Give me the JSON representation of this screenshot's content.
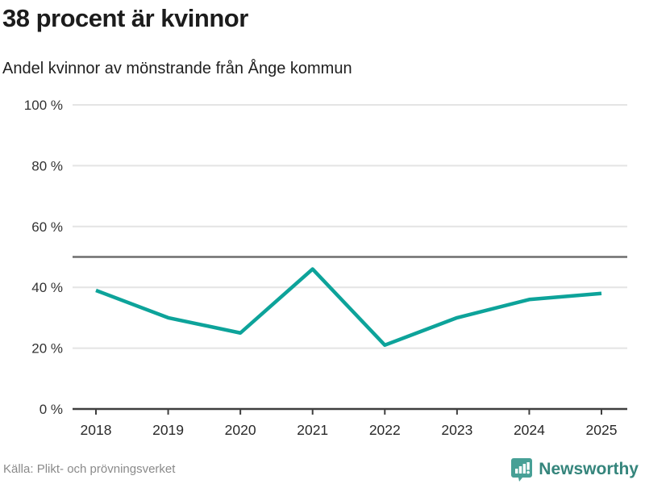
{
  "chart_data": {
    "type": "line",
    "title": "38 procent är kvinnor",
    "subtitle": "Andel kvinnor av mönstrande från Ånge kommun",
    "x": [
      2018,
      2019,
      2020,
      2021,
      2022,
      2023,
      2024,
      2025
    ],
    "values": [
      39,
      30,
      25,
      46,
      21,
      30,
      36,
      38
    ],
    "unit": "%",
    "ylim": [
      0,
      100
    ],
    "yticks": [
      0,
      20,
      40,
      60,
      80,
      100
    ],
    "ytick_suffix": " %",
    "reference_line": 50,
    "grid": true,
    "legend": "none",
    "colors": {
      "line": "#0da39a",
      "gridline": "#e4e4e4",
      "reference_line": "#6e6e6e",
      "axis": "#3f3f3f",
      "tick_label": "#333333"
    }
  },
  "footer": {
    "source": "Källa: Plikt- och prövningsverket",
    "brand": {
      "name": "Newsworthy",
      "icon": "bar-chart-speech-bubble-icon",
      "icon_color": "#47a096",
      "text_color": "#35857c"
    }
  }
}
